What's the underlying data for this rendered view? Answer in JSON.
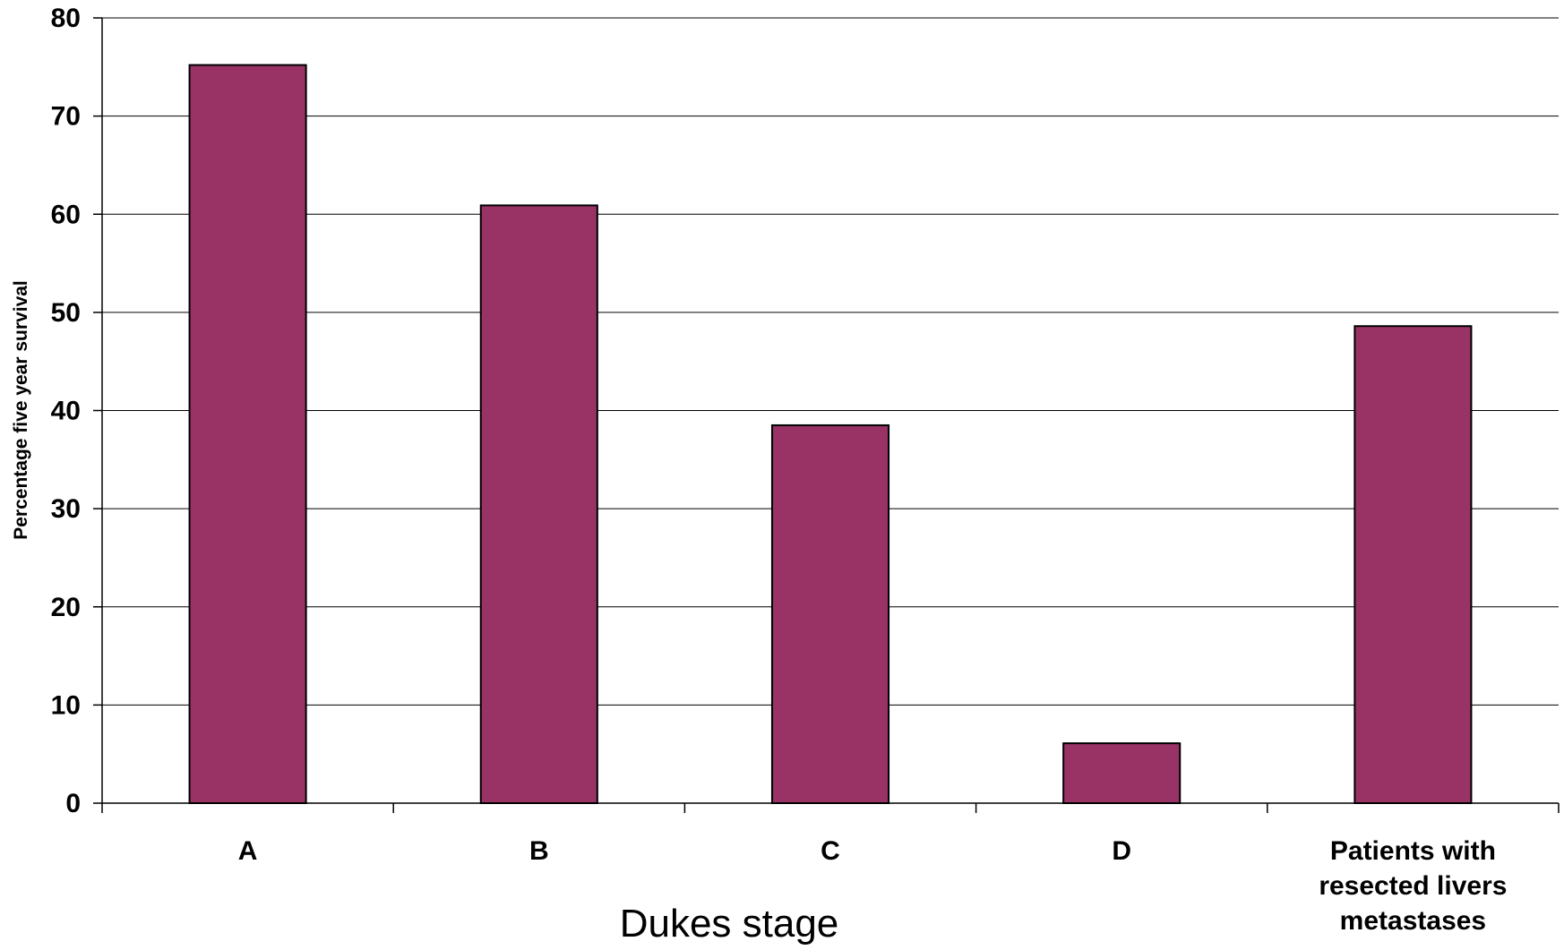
{
  "chart_data": {
    "type": "bar",
    "categories": [
      "A",
      "B",
      "C",
      "D",
      "Patients with resected livers metastases"
    ],
    "category_label_lines": [
      [
        "A"
      ],
      [
        "B"
      ],
      [
        "C"
      ],
      [
        "D"
      ],
      [
        "Patients with",
        "resected livers",
        "metastases"
      ]
    ],
    "series": [
      {
        "values": [
          75.2,
          60.9,
          38.5,
          6.1,
          48.6
        ],
        "color": "#993366"
      }
    ],
    "title": "",
    "xlabel": "Dukes stage",
    "ylabel": "Percentage five year survival",
    "ylim": [
      0,
      80
    ],
    "yticks": [
      0,
      10,
      20,
      30,
      40,
      50,
      60,
      70,
      80
    ],
    "grid": true,
    "legend": "none",
    "bar_outline_color": "#000000",
    "gridline_color": "#000000"
  }
}
